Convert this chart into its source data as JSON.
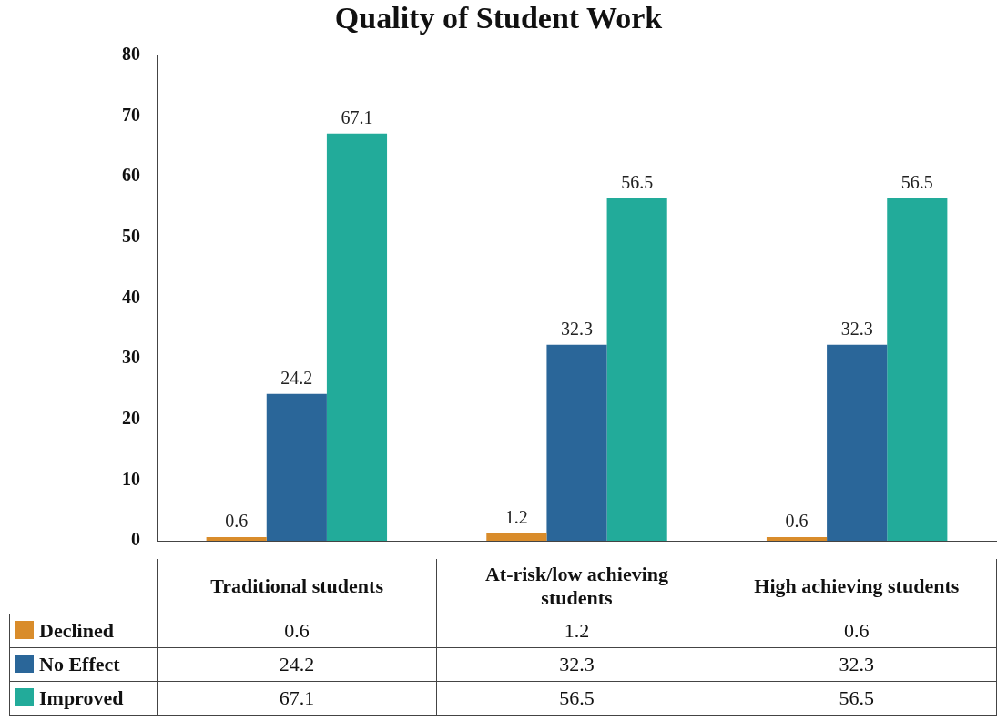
{
  "chart_data": {
    "type": "bar",
    "title": "Quality of Student Work",
    "categories": [
      "Traditional students",
      "At-risk/low achieving students",
      "High achieving students"
    ],
    "series": [
      {
        "name": "Declined",
        "color": "#d98c2b",
        "values": [
          0.6,
          1.2,
          0.6
        ],
        "value_labels": [
          "0.6",
          "1.2",
          "0.6"
        ]
      },
      {
        "name": "No Effect",
        "color": "#2a6699",
        "values": [
          24.2,
          32.3,
          32.3
        ],
        "value_labels": [
          "24.2",
          "32.3",
          "32.3"
        ]
      },
      {
        "name": "Improved",
        "color": "#22ab9a",
        "values": [
          67.1,
          56.5,
          56.5
        ],
        "value_labels": [
          "67.1",
          "56.5",
          "56.5"
        ]
      }
    ],
    "ylim": [
      0,
      80
    ],
    "yticks": [
      0,
      10,
      20,
      30,
      40,
      50,
      60,
      70,
      80
    ],
    "grid": false,
    "legend": "bottom",
    "annotations": [
      "0.6",
      "1.2",
      "0.6",
      "24.2",
      "32.3",
      "32.3",
      "67.1",
      "56.5",
      "56.5"
    ]
  }
}
